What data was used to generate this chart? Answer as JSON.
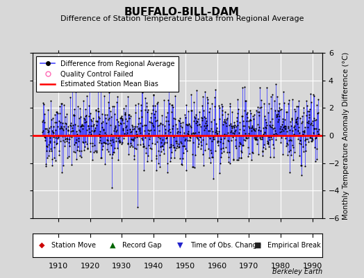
{
  "title": "BUFFALO-BILL-DAM",
  "subtitle": "Difference of Station Temperature Data from Regional Average",
  "ylabel": "Monthly Temperature Anomaly Difference (°C)",
  "xlabel_ticks": [
    1910,
    1920,
    1930,
    1940,
    1950,
    1960,
    1970,
    1980,
    1990
  ],
  "ylim": [
    -6,
    6
  ],
  "xlim": [
    1902,
    1993
  ],
  "yticks": [
    -6,
    -4,
    -2,
    0,
    2,
    4,
    6
  ],
  "mean_bias": 0.0,
  "bg_color": "#d8d8d8",
  "plot_bg": "#d8d8d8",
  "line_color": "#4444ff",
  "bias_color": "#ff0000",
  "dot_color": "#000000",
  "grid_color": "#ffffff",
  "seed": 42,
  "years_start": 1905,
  "years_end": 1992
}
